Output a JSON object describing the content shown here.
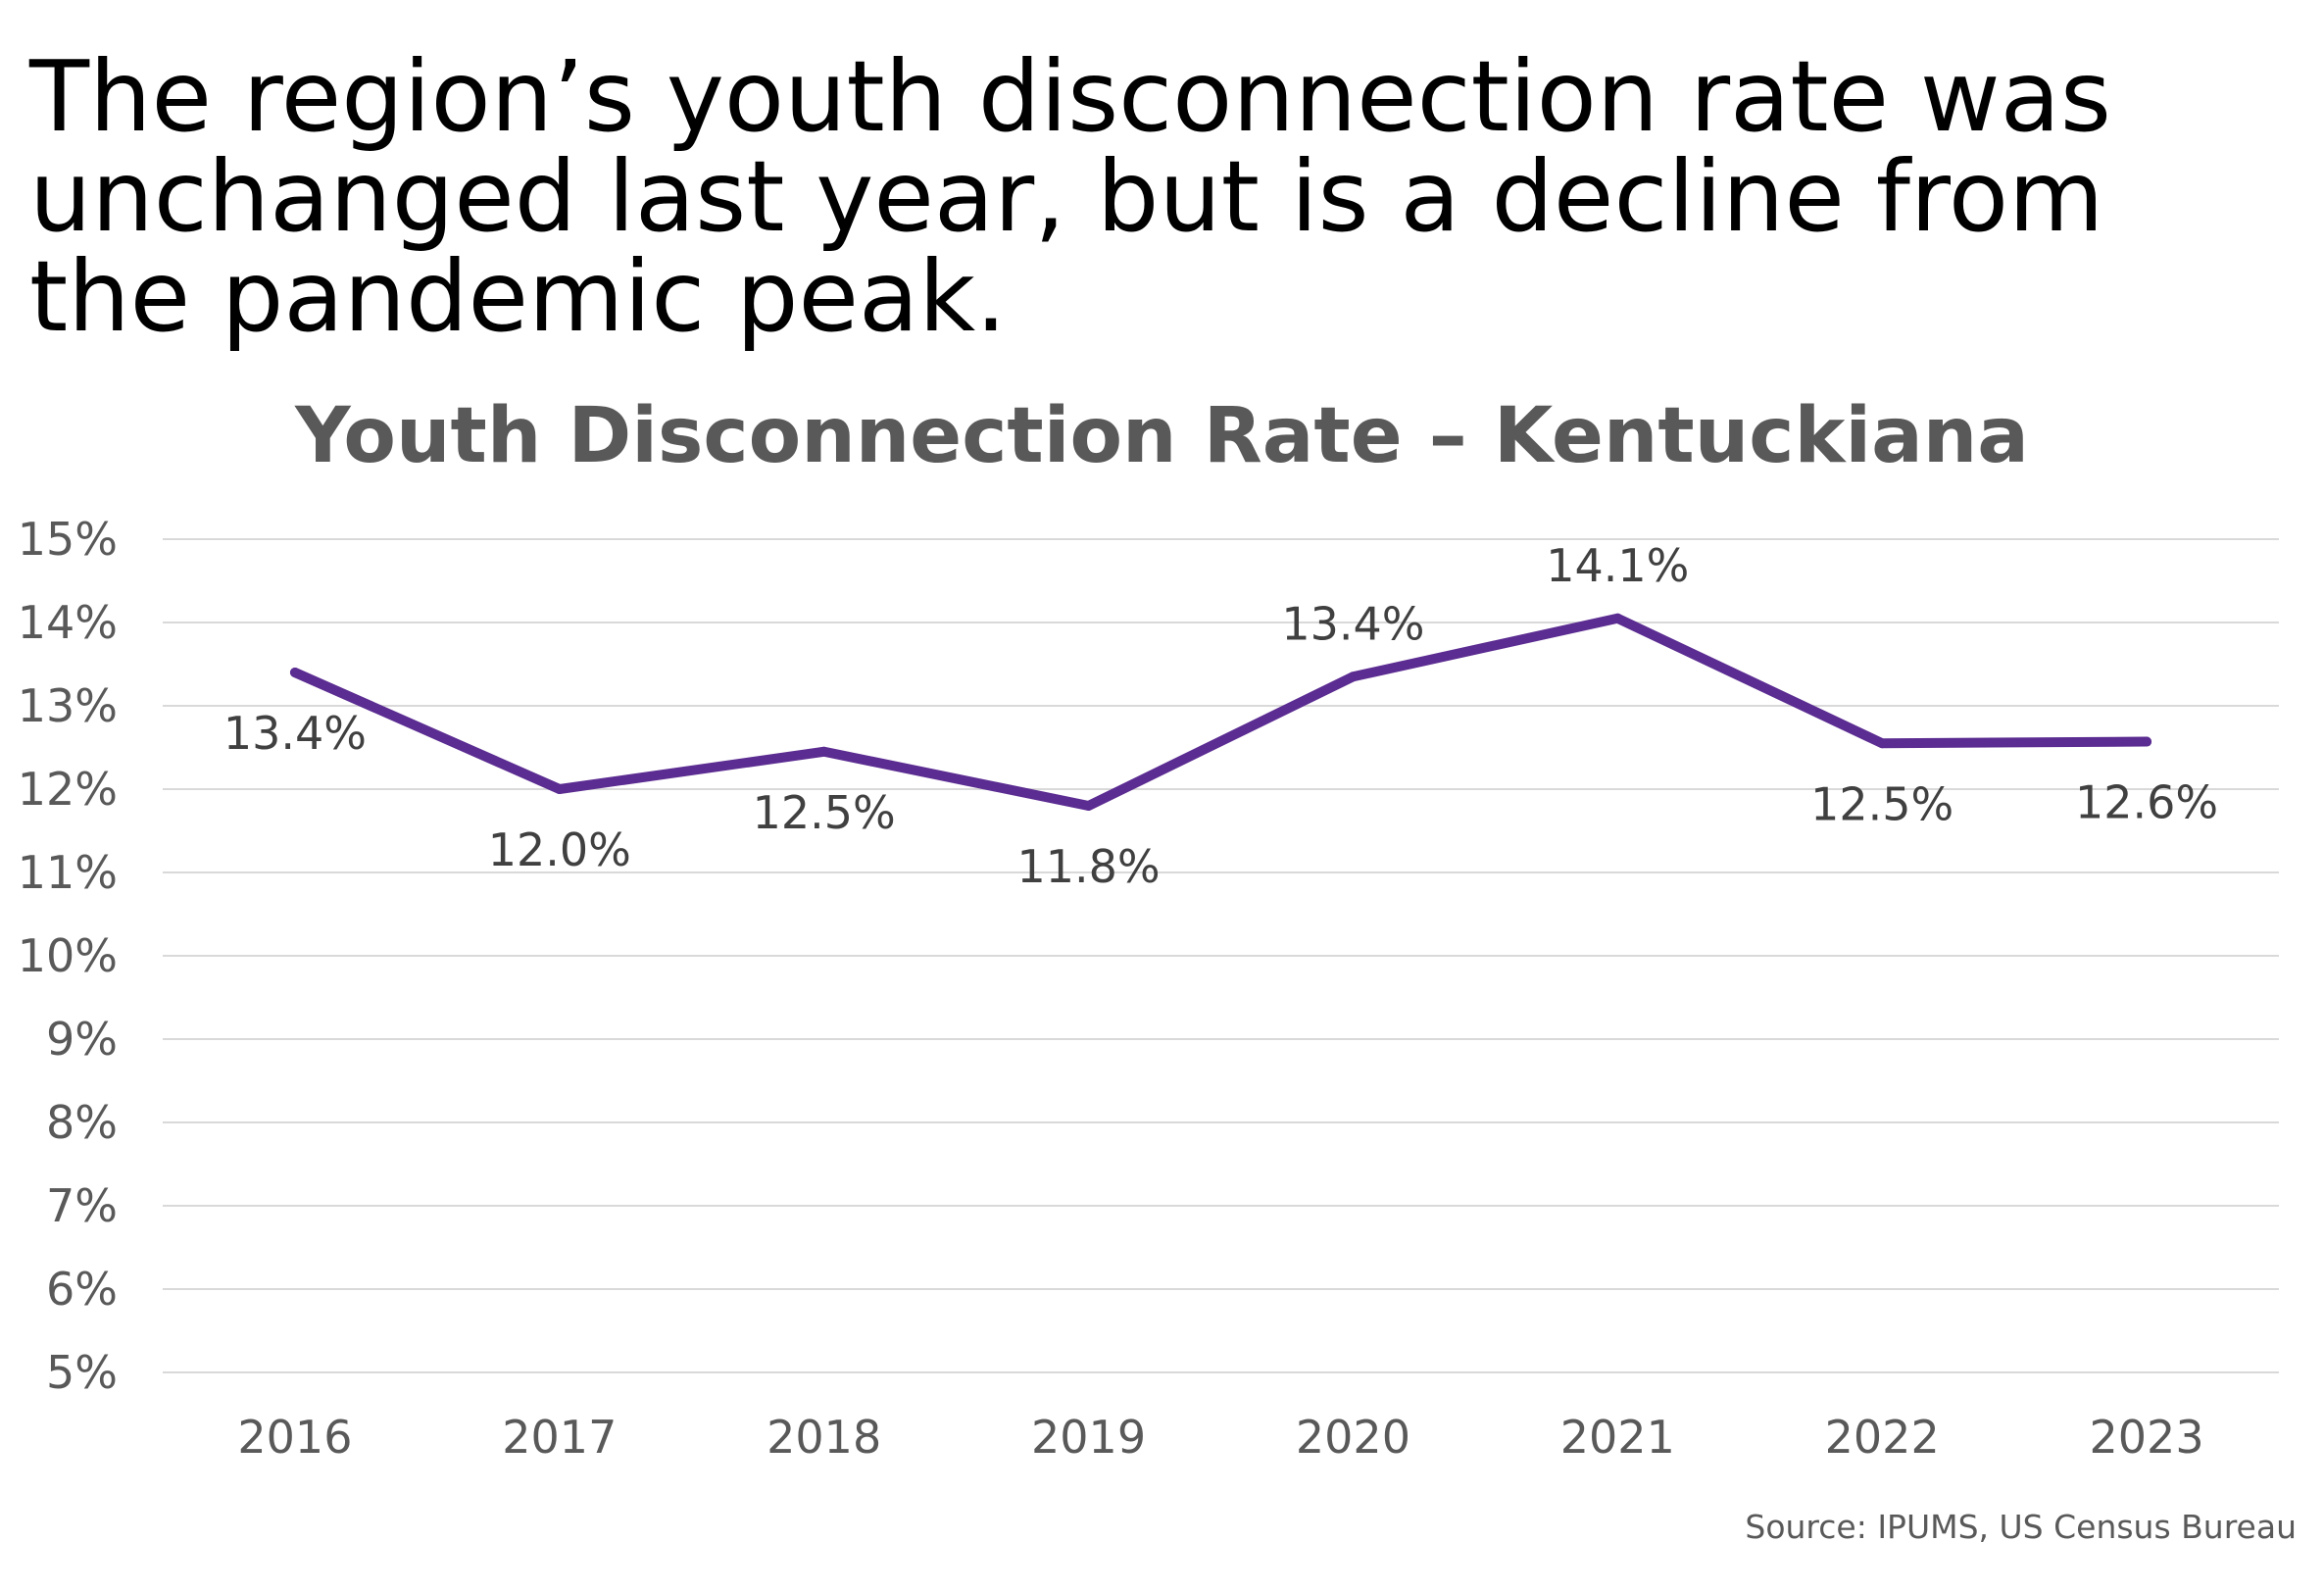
{
  "headline": "The region’s youth disconnection rate was unchanged last year, but is a decline from the pandemic peak.",
  "source": "Source: IPUMS, US Census Bureau",
  "colors": {
    "line": "#5B2C91",
    "grid": "#D9D9D9",
    "text": "#595959"
  },
  "chart_data": {
    "type": "line",
    "title": "Youth Disconnection Rate – Kentuckiana",
    "xlabel": "",
    "ylabel": "",
    "categories": [
      "2016",
      "2017",
      "2018",
      "2019",
      "2020",
      "2021",
      "2022",
      "2023"
    ],
    "series": [
      {
        "values": [
          13.4,
          12.0,
          12.45,
          11.8,
          13.35,
          14.05,
          12.55,
          12.57
        ],
        "labels": [
          "13.4%",
          "12.0%",
          "12.5%",
          "11.8%",
          "13.4%",
          "14.1%",
          "12.5%",
          "12.6%"
        ],
        "label_position": [
          "below",
          "below",
          "below",
          "below",
          "above",
          "above",
          "below",
          "below"
        ]
      }
    ],
    "ylim": [
      5,
      15
    ],
    "yticks": [
      5,
      6,
      7,
      8,
      9,
      10,
      11,
      12,
      13,
      14,
      15
    ],
    "ytick_labels": [
      "5%",
      "6%",
      "7%",
      "8%",
      "9%",
      "10%",
      "11%",
      "12%",
      "13%",
      "14%",
      "15%"
    ],
    "grid": true,
    "legend": "none"
  }
}
